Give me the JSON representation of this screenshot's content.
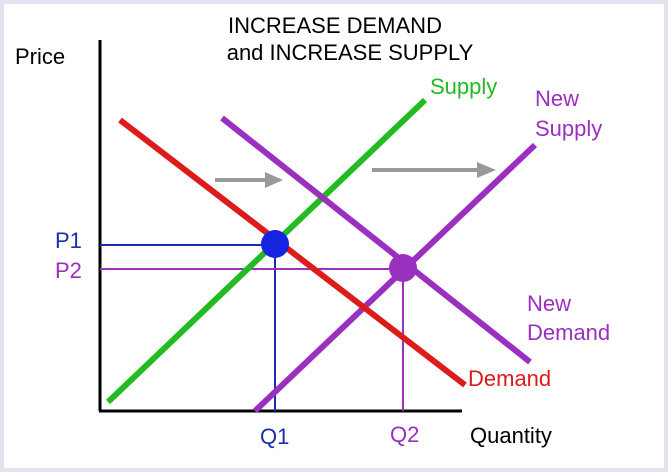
{
  "title": {
    "lines": [
      "INCREASE DEMAND",
      "and INCREASE SUPPLY"
    ]
  },
  "axes": {
    "y_label": "Price",
    "x_label": "Quantity"
  },
  "curves": {
    "supply": "Supply",
    "new_supply": [
      "New",
      "Supply"
    ],
    "demand": "Demand",
    "new_demand": [
      "New",
      "Demand"
    ]
  },
  "prices": [
    "P1",
    "P2"
  ],
  "quantities": [
    "Q1",
    "Q2"
  ]
}
